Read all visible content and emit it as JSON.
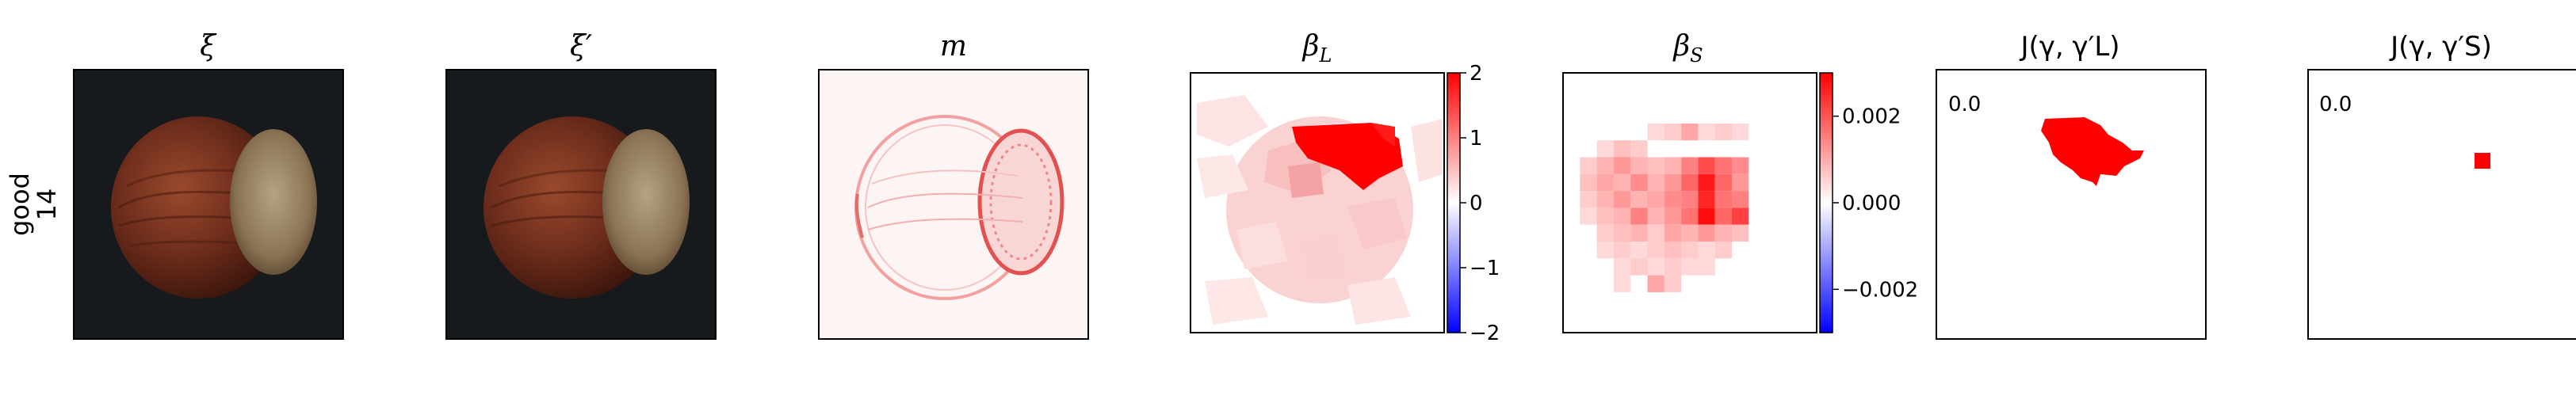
{
  "row_label": {
    "line1": "good",
    "line2": "14"
  },
  "panels": [
    {
      "key": "xi",
      "title": "ξ"
    },
    {
      "key": "xi_prime",
      "title": "ξ′"
    },
    {
      "key": "m",
      "title": "m"
    },
    {
      "key": "beta_L",
      "title": "βL"
    },
    {
      "key": "beta_S",
      "title": "βS"
    },
    {
      "key": "J_L",
      "title": "J(γ, γ′L)",
      "inset_value": "0.0"
    },
    {
      "key": "J_S",
      "title": "J(γ, γ′S)",
      "inset_value": "0.0"
    }
  ],
  "colorbars": {
    "beta_L": {
      "ticks": [
        "2",
        "1",
        "0",
        "−1",
        "−2"
      ],
      "range": [
        -2,
        2
      ],
      "tick_values": [
        2,
        1,
        0,
        -1,
        -2
      ]
    },
    "beta_S": {
      "ticks": [
        "0.002",
        "0.000",
        "−0.002"
      ],
      "range": [
        -0.003,
        0.003
      ],
      "tick_values": [
        0.002,
        0.0,
        -0.002
      ]
    }
  },
  "colors": {
    "positive": "#ff0000",
    "negative": "#0000ff",
    "neutral": "#ffffff",
    "photo_background": "#161a1c",
    "hazelnut": "#6e2d1c"
  }
}
